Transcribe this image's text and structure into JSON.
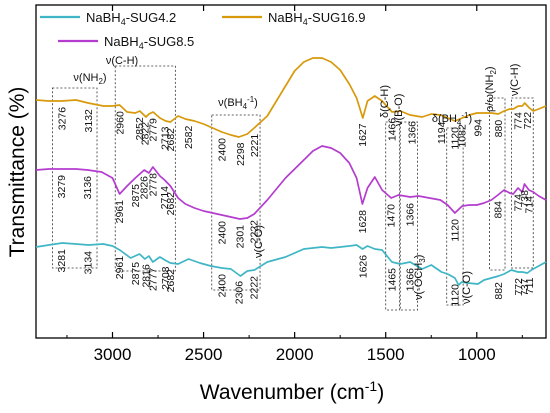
{
  "chart_data": {
    "type": "line",
    "xlabel": "Wavenumber (cm",
    "xlabel_sup": "-1",
    "xlabel_end": ")",
    "ylabel": "Transmittance (%)",
    "xlim": [
      3420,
      620
    ],
    "x_reversed": true,
    "xticks": [
      "3000",
      "2500",
      "2000",
      "1500",
      "1000"
    ],
    "yticks_shown": false,
    "series": [
      {
        "name_pre": "NaBH",
        "name_sub": "4",
        "name_post": "-SUG4.2",
        "color": "#3fb6c6",
        "x": [
          3420,
          3350,
          3276,
          3200,
          3132,
          3050,
          3000,
          2960,
          2900,
          2852,
          2822,
          2800,
          2779,
          2740,
          2713,
          2682,
          2640,
          2582,
          2520,
          2460,
          2400,
          2350,
          2298,
          2260,
          2221,
          2150,
          2050,
          1950,
          1850,
          1800,
          1750,
          1700,
          1660,
          1627,
          1600,
          1560,
          1520,
          1466,
          1420,
          1366,
          1300,
          1250,
          1194,
          1160,
          1120,
          1100,
          1082,
          1050,
          994,
          960,
          920,
          880,
          850,
          810,
          774,
          750,
          722,
          700,
          660,
          620
        ],
        "y": [
          247,
          245,
          243,
          244,
          245,
          244,
          246,
          250,
          258,
          254,
          259,
          256,
          262,
          257,
          260,
          263,
          264,
          259,
          263,
          266,
          268,
          269,
          276,
          271,
          270,
          262,
          257,
          249,
          247,
          248,
          247,
          246,
          245,
          249,
          246,
          249,
          250,
          262,
          264,
          262,
          269,
          265,
          272,
          274,
          278,
          285,
          282,
          283,
          284,
          280,
          278,
          276,
          274,
          270,
          272,
          272,
          273,
          270,
          266,
          262
        ]
      },
      {
        "name_pre": "NaBH",
        "name_sub": "4",
        "name_post": "-SUG8.5",
        "color": "#b43ccf",
        "x": [
          3420,
          3350,
          3279,
          3200,
          3136,
          3060,
          3000,
          2961,
          2920,
          2875,
          2850,
          2826,
          2800,
          2778,
          2740,
          2714,
          2682,
          2640,
          2600,
          2550,
          2500,
          2450,
          2400,
          2350,
          2301,
          2260,
          2222,
          2150,
          2050,
          1950,
          1900,
          1850,
          1800,
          1750,
          1700,
          1660,
          1628,
          1600,
          1560,
          1520,
          1470,
          1430,
          1366,
          1320,
          1260,
          1200,
          1160,
          1120,
          1080,
          1040,
          1000,
          960,
          920,
          884,
          850,
          820,
          800,
          774,
          750,
          738,
          714,
          690,
          660,
          620
        ],
        "y": [
          170,
          169,
          169,
          169,
          170,
          172,
          178,
          194,
          186,
          178,
          174,
          170,
          173,
          167,
          176,
          180,
          186,
          198,
          204,
          208,
          211,
          213,
          215,
          217,
          219,
          218,
          214,
          200,
          178,
          160,
          151,
          146,
          148,
          153,
          163,
          178,
          204,
          188,
          177,
          190,
          198,
          195,
          197,
          196,
          198,
          200,
          205,
          213,
          206,
          205,
          205,
          203,
          200,
          195,
          190,
          193,
          194,
          188,
          192,
          184,
          190,
          192,
          196,
          200
        ]
      },
      {
        "name_pre": "NaBH",
        "name_sub": "4",
        "name_post": "-SUG16.9",
        "color": "#d89a0c",
        "x": [
          3420,
          3350,
          3281,
          3200,
          3134,
          3050,
          3000,
          2961,
          2920,
          2875,
          2850,
          2816,
          2800,
          2777,
          2740,
          2708,
          2682,
          2640,
          2600,
          2550,
          2500,
          2450,
          2400,
          2350,
          2306,
          2260,
          2222,
          2150,
          2050,
          2000,
          1950,
          1900,
          1850,
          1800,
          1750,
          1700,
          1660,
          1626,
          1600,
          1560,
          1520,
          1465,
          1420,
          1366,
          1300,
          1250,
          1200,
          1160,
          1120,
          1080,
          1040,
          1000,
          960,
          920,
          882,
          850,
          820,
          800,
          772,
          750,
          737,
          711,
          690,
          660,
          620
        ],
        "y": [
          100,
          101,
          101,
          100,
          103,
          106,
          106,
          105,
          112,
          113,
          111,
          117,
          114,
          112,
          118,
          121,
          122,
          116,
          119,
          121,
          124,
          128,
          132,
          135,
          137,
          134,
          128,
          116,
          86,
          71,
          62,
          58,
          58,
          62,
          70,
          84,
          98,
          118,
          101,
          96,
          101,
          112,
          111,
          115,
          117,
          114,
          115,
          118,
          121,
          118,
          115,
          113,
          113,
          113,
          114,
          111,
          109,
          109,
          106,
          106,
          103,
          108,
          111,
          109,
          106
        ]
      }
    ],
    "group_labels": [
      {
        "id": "nh2",
        "pre": "ν(NH",
        "sub": "2",
        "post": ")"
      },
      {
        "id": "ch",
        "pre": "ν(C-H)",
        "sub": "",
        "post": ""
      },
      {
        "id": "bh4",
        "pre": "ν(BH",
        "sub": "4",
        "sup": "-1",
        "post": ")"
      },
      {
        "id": "dch",
        "pre": "δ(C-H)",
        "sub": "",
        "post": ""
      },
      {
        "id": "nbo",
        "pre": "ν(B-O)",
        "sub": "",
        "post": ""
      },
      {
        "id": "dbh4",
        "pre": "δ(BH",
        "sub": "4",
        "sup": "-1",
        "post": ")"
      },
      {
        "id": "rho",
        "pre": "ρ/ω(NH",
        "sub": "2",
        "post": ")"
      },
      {
        "id": "ch2",
        "pre": "ν(C-H)",
        "sub": "",
        "post": ""
      },
      {
        "id": "co1",
        "pre": "ν(C-O)",
        "sub": "",
        "post": ""
      },
      {
        "id": "och3",
        "pre": "ν(-OCH",
        "sub": "3",
        "post": ")"
      },
      {
        "id": "co2",
        "pre": "ν(C-O)",
        "sub": "",
        "post": ""
      }
    ],
    "peak_labels": [
      [
        "3281",
        "3134",
        "2961",
        "2875",
        "2816",
        "2777",
        "2708",
        "2682",
        "2400",
        "2306",
        "2222",
        "1626",
        "1465",
        "1366",
        "1120",
        "882",
        "772",
        "737",
        "711"
      ],
      [
        "3279",
        "3136",
        "2961",
        "2875",
        "2826",
        "2778",
        "2714",
        "2682",
        "2400",
        "2301",
        "2222",
        "1628",
        "1470",
        "1366",
        "1120",
        "884",
        "774",
        "738",
        "714"
      ],
      [
        "3276",
        "3132",
        "2960",
        "2852",
        "2822",
        "2779",
        "2713",
        "2682",
        "2582",
        "2400",
        "2298",
        "2221",
        "1627",
        "1466",
        "1366",
        "1194",
        "1120",
        "1082",
        "994",
        "880",
        "774",
        "722"
      ]
    ]
  }
}
